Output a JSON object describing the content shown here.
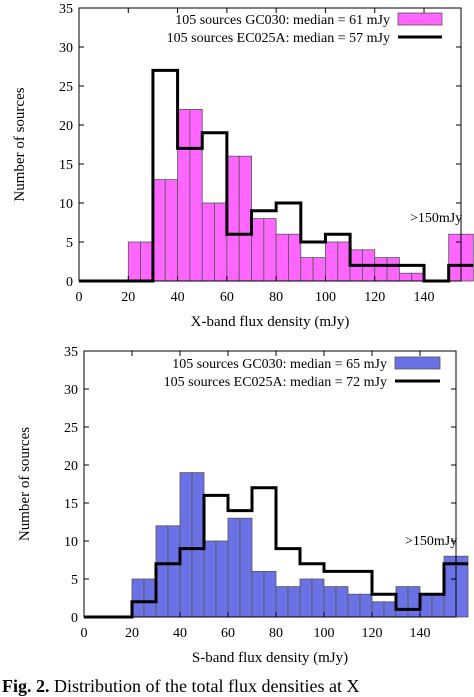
{
  "chart_data": [
    {
      "type": "bar",
      "xlabel": "X-band flux density (mJy)",
      "ylabel": "Number of sources",
      "xlim": [
        0,
        155
      ],
      "ylim": [
        0,
        35
      ],
      "xticks": [
        0,
        20,
        40,
        60,
        80,
        100,
        120,
        140
      ],
      "yticks": [
        0,
        5,
        10,
        15,
        20,
        25,
        30,
        35
      ],
      "bin_width": 5,
      "legend_position": "top-right",
      "annotation": ">150mJy",
      "series": [
        {
          "name": "105 sources GC030:  median = 61 mJy",
          "style": "filled-bars",
          "color": "#ff66ff",
          "x": [
            20,
            25,
            30,
            35,
            40,
            45,
            50,
            55,
            60,
            65,
            70,
            75,
            80,
            85,
            90,
            95,
            100,
            105,
            110,
            115,
            120,
            125,
            130,
            135,
            140,
            145,
            150,
            155
          ],
          "values": [
            5,
            5,
            13,
            13,
            22,
            22,
            10,
            10,
            16,
            16,
            8,
            8,
            6,
            6,
            3,
            3,
            5,
            5,
            4,
            4,
            3,
            3,
            1,
            1,
            0,
            0,
            6,
            6
          ]
        },
        {
          "name": "105 sources EC025A: median = 57 mJy",
          "style": "step-line",
          "color": "#000000",
          "x": [
            30,
            35,
            40,
            45,
            50,
            55,
            60,
            65,
            70,
            75,
            80,
            85,
            90,
            95,
            100,
            105,
            110,
            115,
            120,
            125,
            130,
            135,
            140,
            145,
            150,
            155
          ],
          "values": [
            27,
            27,
            17,
            17,
            19,
            19,
            6,
            6,
            9,
            9,
            10,
            10,
            5,
            5,
            6,
            6,
            2,
            2,
            2,
            2,
            2,
            2,
            0,
            0,
            2,
            2
          ]
        }
      ]
    },
    {
      "type": "bar",
      "xlabel": "S-band flux density (mJy)",
      "ylabel": "Number of sources",
      "xlim": [
        0,
        155
      ],
      "ylim": [
        0,
        35
      ],
      "xticks": [
        0,
        20,
        40,
        60,
        80,
        100,
        120,
        140
      ],
      "yticks": [
        0,
        5,
        10,
        15,
        20,
        25,
        30,
        35
      ],
      "bin_width": 5,
      "legend_position": "top-right",
      "annotation": ">150mJy",
      "series": [
        {
          "name": "105 sources GC030:  median = 65 mJy",
          "style": "filled-bars",
          "color": "#6b72e6",
          "x": [
            20,
            25,
            30,
            35,
            40,
            45,
            50,
            55,
            60,
            65,
            70,
            75,
            80,
            85,
            90,
            95,
            100,
            105,
            110,
            115,
            120,
            125,
            130,
            135,
            140,
            145,
            150,
            155
          ],
          "values": [
            5,
            5,
            12,
            12,
            19,
            19,
            10,
            10,
            13,
            13,
            6,
            6,
            4,
            4,
            5,
            5,
            4,
            4,
            3,
            3,
            2,
            2,
            4,
            4,
            3,
            3,
            8,
            8
          ]
        },
        {
          "name": "105 sources EC025A: median = 72 mJy",
          "style": "step-line",
          "color": "#000000",
          "x": [
            20,
            25,
            30,
            35,
            40,
            45,
            50,
            55,
            60,
            65,
            70,
            75,
            80,
            85,
            90,
            95,
            100,
            105,
            110,
            115,
            120,
            125,
            130,
            135,
            140,
            145,
            150,
            155
          ],
          "values": [
            2,
            2,
            7,
            7,
            9,
            9,
            16,
            16,
            14,
            14,
            17,
            17,
            9,
            9,
            7,
            7,
            6,
            6,
            6,
            6,
            3,
            3,
            1,
            1,
            3,
            3,
            7,
            7
          ]
        }
      ]
    }
  ],
  "caption": {
    "label": "Fig. 2.",
    "text": "Distribution of the total flux densities at X"
  }
}
